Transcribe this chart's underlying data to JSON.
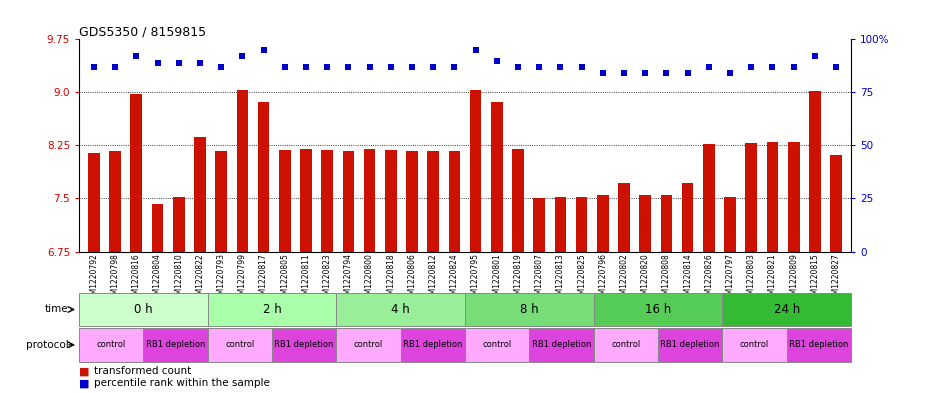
{
  "title": "GDS5350 / 8159815",
  "samples": [
    "GSM1220792",
    "GSM1220798",
    "GSM1220816",
    "GSM1220804",
    "GSM1220810",
    "GSM1220822",
    "GSM1220793",
    "GSM1220799",
    "GSM1220817",
    "GSM1220805",
    "GSM1220811",
    "GSM1220823",
    "GSM1220794",
    "GSM1220800",
    "GSM1220818",
    "GSM1220806",
    "GSM1220812",
    "GSM1220824",
    "GSM1220795",
    "GSM1220801",
    "GSM1220819",
    "GSM1220807",
    "GSM1220813",
    "GSM1220825",
    "GSM1220796",
    "GSM1220802",
    "GSM1220820",
    "GSM1220808",
    "GSM1220814",
    "GSM1220826",
    "GSM1220797",
    "GSM1220803",
    "GSM1220821",
    "GSM1220809",
    "GSM1220815",
    "GSM1220827"
  ],
  "bar_values": [
    8.14,
    8.17,
    8.97,
    7.42,
    7.52,
    8.37,
    8.17,
    9.04,
    8.87,
    8.18,
    8.2,
    8.18,
    8.17,
    8.2,
    8.18,
    8.17,
    8.17,
    8.17,
    9.03,
    8.87,
    8.2,
    7.5,
    7.52,
    7.52,
    7.55,
    7.72,
    7.55,
    7.55,
    7.72,
    8.27,
    7.52,
    8.28,
    8.3,
    8.3,
    9.02,
    8.12
  ],
  "percentile_values": [
    87,
    87,
    92,
    89,
    89,
    89,
    87,
    92,
    95,
    87,
    87,
    87,
    87,
    87,
    87,
    87,
    87,
    87,
    95,
    90,
    87,
    87,
    87,
    87,
    84,
    84,
    84,
    84,
    84,
    87,
    84,
    87,
    87,
    87,
    92,
    87
  ],
  "time_groups": [
    {
      "label": "0 h",
      "start": 0,
      "end": 6
    },
    {
      "label": "2 h",
      "start": 6,
      "end": 12
    },
    {
      "label": "4 h",
      "start": 12,
      "end": 18
    },
    {
      "label": "8 h",
      "start": 18,
      "end": 24
    },
    {
      "label": "16 h",
      "start": 24,
      "end": 30
    },
    {
      "label": "24 h",
      "start": 30,
      "end": 36
    }
  ],
  "time_colors": [
    "#ccffcc",
    "#aaffaa",
    "#99ee99",
    "#77dd77",
    "#55cc55",
    "#33bb33"
  ],
  "protocol_groups": [
    {
      "label": "control",
      "start": 0,
      "end": 3
    },
    {
      "label": "RB1 depletion",
      "start": 3,
      "end": 6
    },
    {
      "label": "control",
      "start": 6,
      "end": 9
    },
    {
      "label": "RB1 depletion",
      "start": 9,
      "end": 12
    },
    {
      "label": "control",
      "start": 12,
      "end": 15
    },
    {
      "label": "RB1 depletion",
      "start": 15,
      "end": 18
    },
    {
      "label": "control",
      "start": 18,
      "end": 21
    },
    {
      "label": "RB1 depletion",
      "start": 21,
      "end": 24
    },
    {
      "label": "control",
      "start": 24,
      "end": 27
    },
    {
      "label": "RB1 depletion",
      "start": 27,
      "end": 30
    },
    {
      "label": "control",
      "start": 30,
      "end": 33
    },
    {
      "label": "RB1 depletion",
      "start": 33,
      "end": 36
    }
  ],
  "control_color": "#ffaaff",
  "depletion_color": "#dd44dd",
  "ylim_left": [
    6.75,
    9.75
  ],
  "yticks_left": [
    6.75,
    7.5,
    8.25,
    9.0,
    9.75
  ],
  "ylim_right": [
    0,
    100
  ],
  "yticks_right": [
    0,
    25,
    50,
    75,
    100
  ],
  "bar_color": "#cc1100",
  "dot_color": "#0000cc",
  "bar_width": 0.55,
  "plot_bg": "#f0f0f0",
  "fig_bg": "#ffffff"
}
